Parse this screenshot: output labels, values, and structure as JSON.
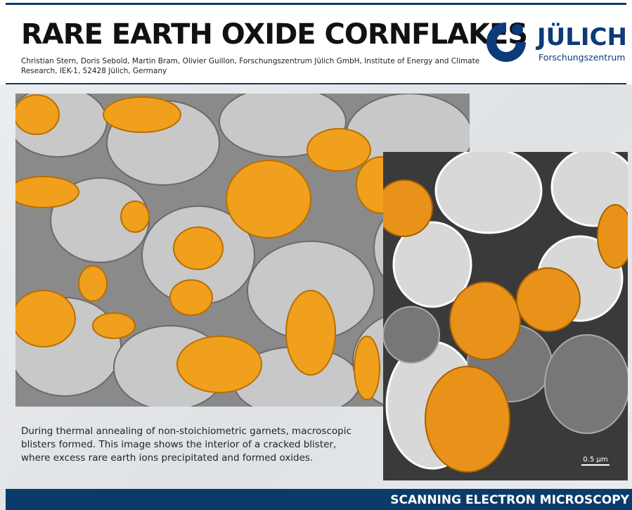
{
  "header": {
    "title": "RARE EARTH OXIDE CORNFLAKES",
    "authors": [
      "Christian Stern, Doris Sebold, Martin Bram,  Olivier Guillon, Forschungszentrum Jülich GmbH, Institute of Energy and Climate",
      "Research, IEK-1, 52428 Jülich, Germany"
    ]
  },
  "logo": {
    "name": "JÜLICH",
    "subtitle": "Forschungszentrum"
  },
  "caption": [
    "During thermal annealing of non-stoichiometric garnets, macroscopic",
    "blisters formed. This image shows the interior of a cracked blister,",
    "where excess rare earth ions precipitated and formed oxides."
  ],
  "scale_bar": "0.5 µm",
  "footer": "SCANNING ELECTRON MICROSCOPY"
}
